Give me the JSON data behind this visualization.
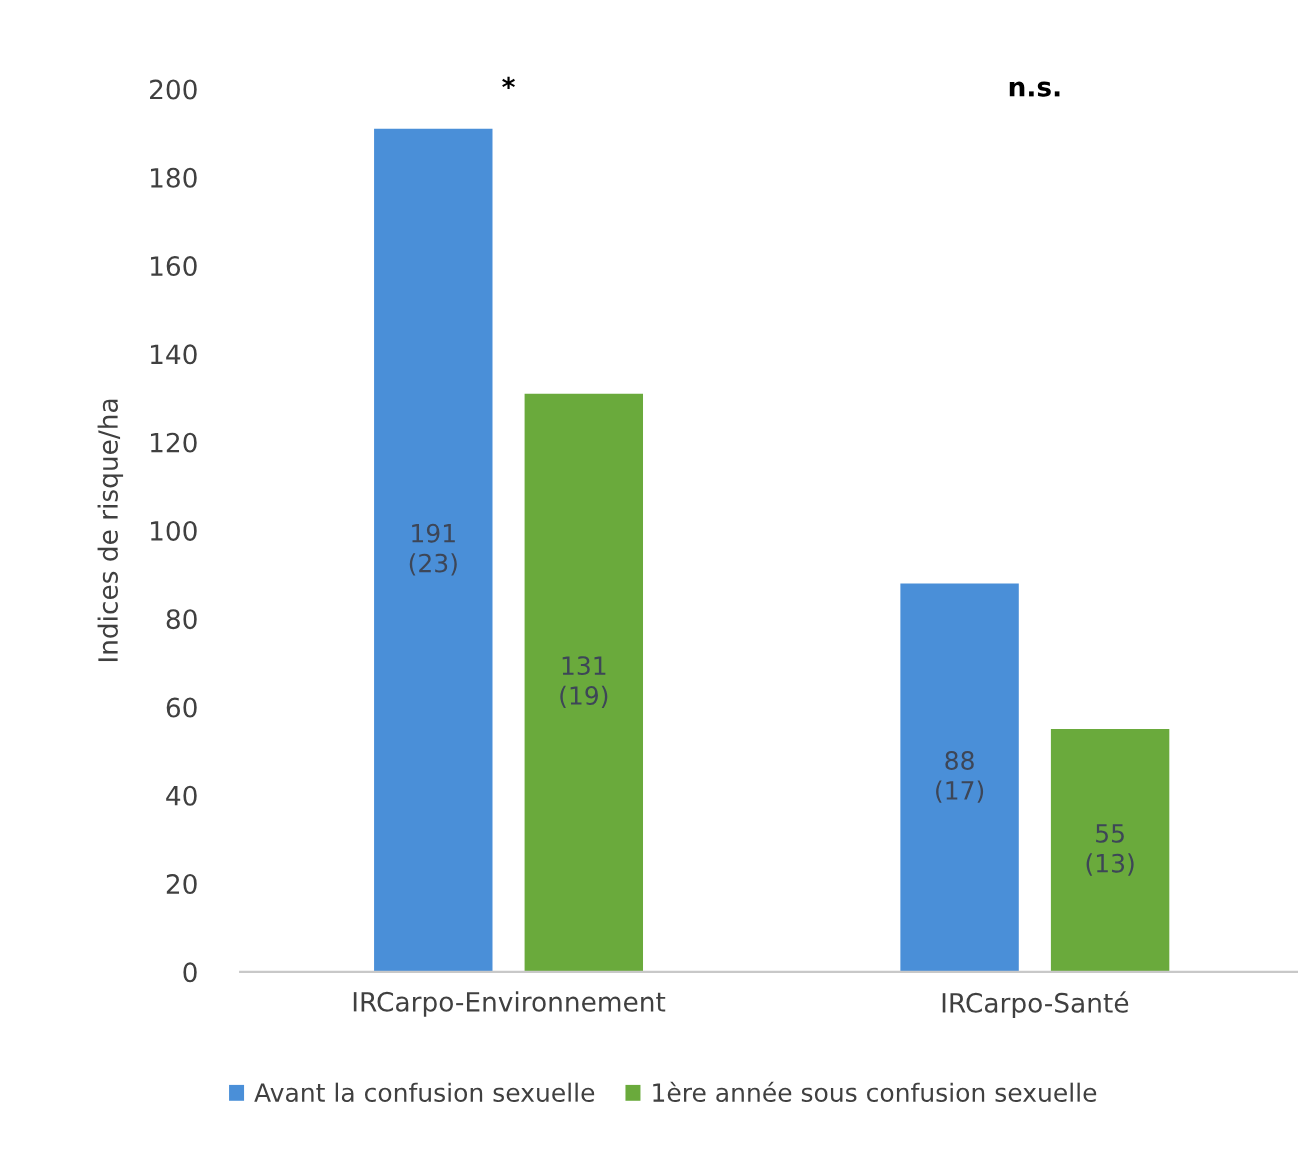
{
  "chart_data": {
    "type": "bar",
    "ylabel": "Indices de risque/ha",
    "categories": [
      "IRCarpo-Environnement",
      "IRCarpo-Santé"
    ],
    "series": [
      {
        "name": "Avant la confusion sexuelle",
        "color": "#4a8fd8",
        "values": [
          191,
          88
        ],
        "value_labels": [
          "191\n(23)",
          "88\n(17)"
        ]
      },
      {
        "name": "1ère année sous confusion sexuelle",
        "color": "#6aaa3c",
        "values": [
          131,
          55
        ],
        "value_labels": [
          "131\n(19)",
          "55\n(13)"
        ]
      }
    ],
    "ylim": [
      0,
      200
    ],
    "yticks": [
      0,
      20,
      40,
      60,
      80,
      100,
      120,
      140,
      160,
      180,
      200
    ],
    "grid": false,
    "legend": "bottom",
    "annotations": [
      "*",
      "n.s."
    ]
  }
}
